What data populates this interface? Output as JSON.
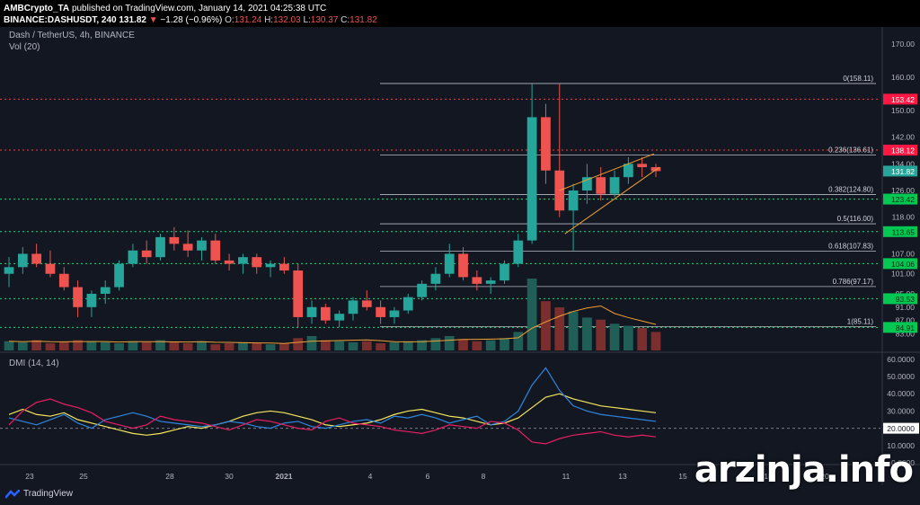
{
  "header": {
    "author": "AMBCrypto_TA",
    "published": "published on TradingView.com, January 14, 2021 04:25:38 UTC",
    "symbol": "BINANCE:DASHUSDT, 240",
    "last": "131.82",
    "change_arrow": "▼",
    "change": "−1.28 (−0.96%)",
    "o_label": "O:",
    "o": "131.24",
    "h_label": "H:",
    "h": "132.03",
    "l_label": "L:",
    "l": "130.37",
    "c_label": "C:",
    "c": "131.82"
  },
  "legend": {
    "title": "Dash / TetherUS, 4h, BINANCE",
    "volume": "Vol (20)",
    "dmi": "DMI (14, 14)"
  },
  "colors": {
    "background": "#131722",
    "up": "#26a69a",
    "down": "#ef5350",
    "green_line": "#00e676",
    "red_line": "#ff3b3b",
    "fib_line": "#e0e3eb",
    "adx": "#f5e65c",
    "di_plus": "#2e86de",
    "di_minus": "#e91e63"
  },
  "price_axis": {
    "ticks": [
      "170.00",
      "160.00",
      "150.00",
      "142.00",
      "134.00",
      "126.00",
      "118.00",
      "107.00",
      "101.00",
      "95.00",
      "91.00",
      "87.00",
      "83.00"
    ],
    "min": 78,
    "max": 174
  },
  "price_labels": [
    {
      "value": "153.42",
      "price": 153.42,
      "type": "red"
    },
    {
      "value": "138.12",
      "price": 138.12,
      "type": "red"
    },
    {
      "value": "131.82",
      "price": 131.82,
      "type": "teal"
    },
    {
      "value": "123.42",
      "price": 123.42,
      "type": "green"
    },
    {
      "value": "113.65",
      "price": 113.65,
      "type": "green"
    },
    {
      "value": "104.06",
      "price": 104.06,
      "type": "green"
    },
    {
      "value": "93.53",
      "price": 93.53,
      "type": "green"
    },
    {
      "value": "84.91",
      "price": 84.91,
      "type": "green"
    }
  ],
  "horizontal_lines": [
    {
      "price": 153.42,
      "color": "red"
    },
    {
      "price": 138.12,
      "color": "red"
    },
    {
      "price": 123.42,
      "color": "green"
    },
    {
      "price": 113.65,
      "color": "green"
    },
    {
      "price": 104.06,
      "color": "green"
    },
    {
      "price": 93.53,
      "color": "green"
    },
    {
      "price": 84.91,
      "color": "green"
    }
  ],
  "fib_levels": [
    {
      "label": "0(158.11)",
      "price": 158.11
    },
    {
      "label": "0.236(136.61)",
      "price": 136.61
    },
    {
      "label": "0.382(124.80)",
      "price": 124.8
    },
    {
      "label": "0.5(116.00)",
      "price": 116.0
    },
    {
      "label": "0.618(107.83)",
      "price": 107.83
    },
    {
      "label": "0.786(97.17)",
      "price": 97.17
    },
    {
      "label": "1(85.11)",
      "price": 85.11
    }
  ],
  "dmi_axis": {
    "ticks": [
      "60.0000",
      "50.0000",
      "40.0000",
      "30.0000",
      "20.0000",
      "10.0000",
      "0.0000"
    ],
    "current": "20.0000",
    "min": 0,
    "max": 62
  },
  "time_axis": {
    "labels": [
      "23",
      "25",
      "28",
      "30",
      "2021",
      "4",
      "6",
      "8",
      "11",
      "13",
      "15",
      "18",
      "20"
    ]
  },
  "chart_data": {
    "type": "candlestick",
    "price": [
      {
        "o": 101,
        "h": 106,
        "l": 97,
        "c": 103
      },
      {
        "o": 103,
        "h": 109,
        "l": 101,
        "c": 107
      },
      {
        "o": 107,
        "h": 110,
        "l": 103,
        "c": 104
      },
      {
        "o": 104,
        "h": 108,
        "l": 100,
        "c": 101
      },
      {
        "o": 101,
        "h": 103,
        "l": 96,
        "c": 97
      },
      {
        "o": 97,
        "h": 99,
        "l": 88,
        "c": 91
      },
      {
        "o": 91,
        "h": 96,
        "l": 88,
        "c": 95
      },
      {
        "o": 95,
        "h": 99,
        "l": 92,
        "c": 97
      },
      {
        "o": 97,
        "h": 105,
        "l": 96,
        "c": 104
      },
      {
        "o": 104,
        "h": 110,
        "l": 103,
        "c": 108
      },
      {
        "o": 108,
        "h": 111,
        "l": 104,
        "c": 106
      },
      {
        "o": 106,
        "h": 113,
        "l": 105,
        "c": 112
      },
      {
        "o": 112,
        "h": 115,
        "l": 108,
        "c": 110
      },
      {
        "o": 110,
        "h": 114,
        "l": 106,
        "c": 108
      },
      {
        "o": 108,
        "h": 112,
        "l": 105,
        "c": 111
      },
      {
        "o": 111,
        "h": 113,
        "l": 104,
        "c": 105
      },
      {
        "o": 105,
        "h": 107,
        "l": 102,
        "c": 104
      },
      {
        "o": 104,
        "h": 107,
        "l": 101,
        "c": 106
      },
      {
        "o": 106,
        "h": 107,
        "l": 101,
        "c": 103
      },
      {
        "o": 103,
        "h": 105,
        "l": 100,
        "c": 104
      },
      {
        "o": 104,
        "h": 106,
        "l": 101,
        "c": 102
      },
      {
        "o": 102,
        "h": 104,
        "l": 85,
        "c": 88
      },
      {
        "o": 88,
        "h": 93,
        "l": 86,
        "c": 91
      },
      {
        "o": 91,
        "h": 92,
        "l": 86,
        "c": 87
      },
      {
        "o": 87,
        "h": 90,
        "l": 85,
        "c": 89
      },
      {
        "o": 89,
        "h": 94,
        "l": 87,
        "c": 93
      },
      {
        "o": 93,
        "h": 96,
        "l": 90,
        "c": 91
      },
      {
        "o": 91,
        "h": 93,
        "l": 86,
        "c": 88
      },
      {
        "o": 88,
        "h": 91,
        "l": 86,
        "c": 90
      },
      {
        "o": 90,
        "h": 95,
        "l": 89,
        "c": 94
      },
      {
        "o": 94,
        "h": 99,
        "l": 93,
        "c": 98
      },
      {
        "o": 98,
        "h": 103,
        "l": 96,
        "c": 101
      },
      {
        "o": 101,
        "h": 110,
        "l": 100,
        "c": 107
      },
      {
        "o": 107,
        "h": 109,
        "l": 99,
        "c": 100
      },
      {
        "o": 100,
        "h": 102,
        "l": 96,
        "c": 98
      },
      {
        "o": 98,
        "h": 100,
        "l": 95,
        "c": 99
      },
      {
        "o": 99,
        "h": 105,
        "l": 98,
        "c": 104
      },
      {
        "o": 104,
        "h": 113,
        "l": 103,
        "c": 111
      },
      {
        "o": 111,
        "h": 158,
        "l": 110,
        "c": 148
      },
      {
        "o": 148,
        "h": 152,
        "l": 128,
        "c": 132
      },
      {
        "o": 132,
        "h": 158,
        "l": 118,
        "c": 120
      },
      {
        "o": 120,
        "h": 128,
        "l": 108,
        "c": 126
      },
      {
        "o": 126,
        "h": 134,
        "l": 122,
        "c": 130
      },
      {
        "o": 130,
        "h": 133,
        "l": 123,
        "c": 125
      },
      {
        "o": 125,
        "h": 132,
        "l": 124,
        "c": 130
      },
      {
        "o": 130,
        "h": 136,
        "l": 128,
        "c": 134
      },
      {
        "o": 134,
        "h": 136,
        "l": 130,
        "c": 133
      },
      {
        "o": 133,
        "h": 134,
        "l": 130,
        "c": 131.82
      }
    ],
    "volume": [
      9,
      8,
      10,
      7,
      8,
      10,
      9,
      8,
      7,
      9,
      8,
      10,
      8,
      7,
      9,
      6,
      7,
      8,
      7,
      6,
      7,
      12,
      14,
      10,
      9,
      8,
      9,
      7,
      8,
      9,
      10,
      12,
      14,
      11,
      9,
      10,
      12,
      18,
      70,
      48,
      42,
      38,
      32,
      30,
      26,
      24,
      22,
      18
    ],
    "adx": [
      28,
      31,
      28,
      27,
      29,
      25,
      23,
      21,
      19,
      17,
      16,
      17,
      19,
      21,
      20,
      22,
      24,
      27,
      29,
      30,
      29,
      27,
      25,
      22,
      21,
      22,
      23,
      25,
      28,
      30,
      31,
      29,
      27,
      26,
      24,
      22,
      23,
      26,
      32,
      38,
      40,
      37,
      35,
      33,
      32,
      31,
      30,
      29
    ],
    "di_plus": [
      26,
      24,
      22,
      25,
      28,
      23,
      20,
      25,
      27,
      29,
      27,
      24,
      23,
      22,
      21,
      22,
      24,
      23,
      21,
      20,
      23,
      24,
      21,
      20,
      22,
      24,
      25,
      23,
      27,
      26,
      28,
      26,
      23,
      25,
      27,
      22,
      24,
      30,
      45,
      55,
      42,
      33,
      30,
      28,
      27,
      26,
      25,
      24
    ],
    "di_minus": [
      22,
      30,
      35,
      37,
      34,
      32,
      29,
      24,
      22,
      20,
      22,
      27,
      25,
      24,
      23,
      21,
      19,
      22,
      25,
      24,
      22,
      20,
      19,
      24,
      26,
      23,
      22,
      21,
      19,
      18,
      17,
      19,
      22,
      21,
      20,
      24,
      23,
      19,
      12,
      11,
      14,
      16,
      17,
      18,
      16,
      15,
      16,
      15
    ]
  },
  "footer": {
    "brand": "TradingView",
    "watermark": "arzinja.info"
  }
}
